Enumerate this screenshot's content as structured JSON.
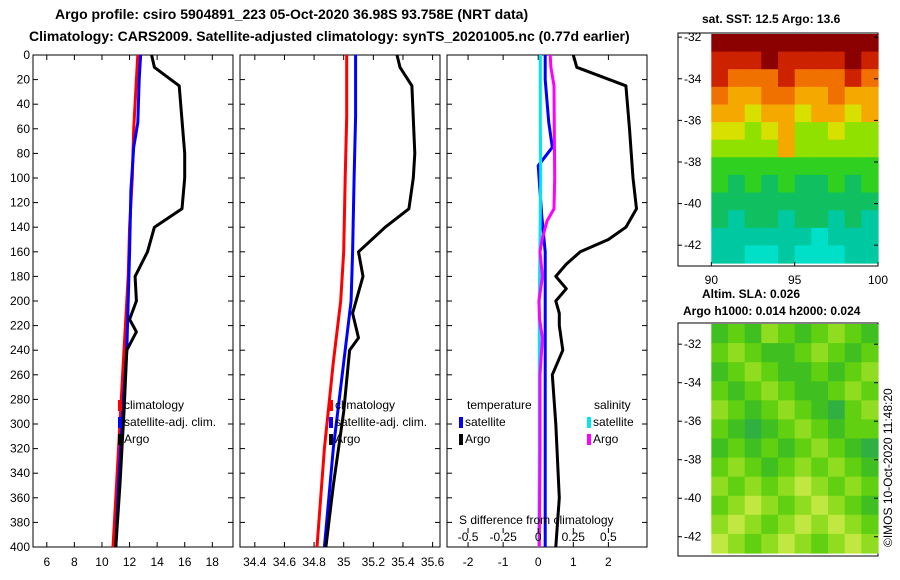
{
  "header": {
    "line1": "Argo profile: csiro 5904891_223 05-Oct-2020 36.98S 93.758E (NRT data)",
    "line2": "Climatology: CARS2009. Satellite-adjusted climatology: synTS_20201005.nc (0.77d earlier)"
  },
  "credit": "©IMOS 10-Oct-2020 11:48:20",
  "colors": {
    "climatology": "#ff0000",
    "satellite": "#0000ff",
    "argo": "#000000",
    "salinity_sat": "#00e5ee",
    "salinity_argo": "#ff00ff"
  },
  "chart_data": [
    {
      "id": "temperature",
      "type": "line",
      "xlim": [
        5,
        19.5
      ],
      "ylim": [
        0,
        400
      ],
      "x_ticks": [
        "6",
        "8",
        "10",
        "12",
        "14",
        "16",
        "18"
      ],
      "x_tick_values": [
        6,
        8,
        10,
        12,
        14,
        16,
        18
      ],
      "y_ticks": [
        "0",
        "20",
        "40",
        "60",
        "80",
        "100",
        "120",
        "140",
        "160",
        "180",
        "200",
        "220",
        "240",
        "260",
        "280",
        "300",
        "320",
        "340",
        "360",
        "380",
        "400"
      ],
      "y_tick_values": [
        0,
        20,
        40,
        60,
        80,
        100,
        120,
        140,
        160,
        180,
        200,
        220,
        240,
        260,
        280,
        300,
        320,
        340,
        360,
        380,
        400
      ],
      "legend": [
        "climatology",
        "satellite-adj. clim.",
        "Argo"
      ],
      "series": [
        {
          "name": "climatology",
          "color_key": "climatology",
          "x": [
            12.6,
            12.5,
            12.3,
            12.2,
            12.0,
            11.9,
            11.6,
            11.3,
            11.0,
            10.8
          ],
          "depth": [
            0,
            20,
            60,
            100,
            140,
            180,
            240,
            300,
            360,
            400
          ]
        },
        {
          "name": "satellite-adj. clim.",
          "color_key": "satellite",
          "x": [
            12.8,
            12.7,
            12.6,
            12.3,
            12.1,
            12.0,
            11.9,
            11.8,
            11.5,
            11.2,
            11.0
          ],
          "depth": [
            0,
            20,
            55,
            75,
            110,
            160,
            200,
            240,
            290,
            350,
            400
          ]
        },
        {
          "name": "Argo",
          "color_key": "argo",
          "x": [
            13.6,
            13.8,
            15.6,
            16.0,
            16.0,
            15.8,
            13.8,
            13.3,
            12.4,
            12.5,
            12.0,
            12.5,
            11.8,
            11.6,
            11.3,
            11.0
          ],
          "depth": [
            0,
            10,
            25,
            80,
            100,
            125,
            140,
            160,
            180,
            200,
            215,
            225,
            240,
            290,
            350,
            400
          ]
        }
      ]
    },
    {
      "id": "salinity",
      "type": "line",
      "xlim": [
        34.3,
        35.65
      ],
      "ylim": [
        0,
        400
      ],
      "x_ticks": [
        "34.4",
        "34.6",
        "34.8",
        "35",
        "35.2",
        "35.4",
        "35.6"
      ],
      "x_tick_values": [
        34.4,
        34.6,
        34.8,
        35.0,
        35.2,
        35.4,
        35.6
      ],
      "legend": [
        "climatology",
        "satellite-adj. clim.",
        "Argo"
      ],
      "series": [
        {
          "name": "climatology",
          "color_key": "climatology",
          "x": [
            35.02,
            35.02,
            35.01,
            35.0,
            34.98,
            34.93,
            34.87,
            34.82
          ],
          "depth": [
            0,
            50,
            100,
            160,
            200,
            250,
            320,
            400
          ]
        },
        {
          "name": "satellite-adj. clim.",
          "color_key": "satellite",
          "x": [
            35.08,
            35.08,
            35.07,
            35.06,
            35.05,
            35.0,
            34.93,
            34.87
          ],
          "depth": [
            0,
            50,
            100,
            160,
            200,
            250,
            320,
            400
          ]
        },
        {
          "name": "Argo",
          "color_key": "argo",
          "x": [
            35.36,
            35.38,
            35.46,
            35.48,
            35.47,
            35.44,
            35.28,
            35.1,
            35.13,
            35.06,
            35.1,
            35.04,
            35.0,
            34.93,
            34.88
          ],
          "depth": [
            0,
            10,
            25,
            80,
            100,
            125,
            140,
            160,
            180,
            210,
            230,
            240,
            290,
            350,
            400
          ]
        }
      ]
    },
    {
      "id": "difference",
      "type": "line",
      "xlim": [
        -2.6,
        3.1
      ],
      "ylim": [
        0,
        400
      ],
      "x_ticks": [
        "-2",
        "-1",
        "0",
        "1",
        "2"
      ],
      "x_tick_values": [
        -2,
        -1,
        0,
        1,
        2
      ],
      "bottom_ticks": [
        "-0.5",
        "-0.25",
        "0",
        "0.25",
        "0.5"
      ],
      "bottom_title": "S difference from climatology",
      "legend_temperature": {
        "title": "temperature",
        "items": [
          "satellite",
          "Argo"
        ]
      },
      "legend_salinity": {
        "title": "salinity",
        "items": [
          "satellite",
          "Argo"
        ]
      },
      "series": [
        {
          "name": "temperature satellite",
          "color_key": "satellite",
          "x": [
            0.2,
            0.2,
            0.3,
            0.4,
            0.0,
            0.1,
            0.2,
            0.2,
            0.2,
            0.2
          ],
          "depth": [
            0,
            20,
            55,
            75,
            90,
            130,
            160,
            220,
            300,
            400
          ]
        },
        {
          "name": "temperature Argo",
          "color_key": "argo",
          "x": [
            1.0,
            1.1,
            2.5,
            2.6,
            2.7,
            2.8,
            2.5,
            2.0,
            1.2,
            0.8,
            0.5,
            0.8,
            0.5,
            0.6,
            0.6,
            0.7,
            0.4,
            0.5,
            0.6,
            0.5
          ],
          "depth": [
            0,
            10,
            25,
            60,
            100,
            125,
            140,
            150,
            160,
            170,
            180,
            190,
            200,
            210,
            220,
            240,
            260,
            300,
            360,
            400
          ]
        },
        {
          "name": "salinity satellite",
          "color_key": "salinity_sat",
          "x": [
            0.06,
            0.06,
            0.06,
            0.07,
            0.05,
            0.03,
            0.03,
            0.03,
            0.02
          ],
          "depth": [
            0,
            20,
            50,
            100,
            150,
            200,
            250,
            320,
            400
          ]
        },
        {
          "name": "salinity Argo",
          "color_key": "salinity_argo",
          "x": [
            0.34,
            0.36,
            0.45,
            0.46,
            0.47,
            0.45,
            0.25,
            0.11,
            0.05,
            0.12,
            0.02,
            0.04,
            0.12,
            0.05,
            0.05,
            0.03
          ],
          "depth": [
            0,
            10,
            25,
            70,
            100,
            125,
            135,
            150,
            160,
            180,
            200,
            215,
            230,
            260,
            320,
            400
          ]
        }
      ]
    },
    {
      "id": "sst_map",
      "type": "heatmap",
      "title": "sat. SST: 12.5 Argo: 13.6",
      "x_ticks": [
        "90",
        "95",
        "100"
      ],
      "x_tick_values": [
        90,
        95,
        100
      ],
      "y_ticks": [
        "-32",
        "-34",
        "-36",
        "-38",
        "-40",
        "-42"
      ],
      "y_tick_values": [
        -32,
        -34,
        -36,
        -38,
        -40,
        -42
      ],
      "xlim": [
        88,
        100
      ],
      "ylim": [
        -43,
        -31.8
      ],
      "data_xlim": [
        90,
        100
      ],
      "palette": [
        "#8b0000",
        "#cc2200",
        "#f07000",
        "#f5a800",
        "#d8e000",
        "#90e000",
        "#30d020",
        "#10c060",
        "#00c8a0",
        "#00e0c8"
      ],
      "rows": [
        [
          0,
          0,
          0,
          0,
          0,
          0,
          0,
          0,
          0,
          0
        ],
        [
          1,
          1,
          1,
          0,
          1,
          1,
          1,
          1,
          0,
          1
        ],
        [
          1,
          2,
          2,
          2,
          1,
          2,
          2,
          2,
          1,
          2
        ],
        [
          2,
          3,
          3,
          2,
          2,
          3,
          3,
          2,
          3,
          3
        ],
        [
          3,
          3,
          4,
          3,
          3,
          4,
          3,
          3,
          4,
          3
        ],
        [
          4,
          4,
          5,
          4,
          3,
          5,
          5,
          4,
          5,
          5
        ],
        [
          5,
          5,
          5,
          5,
          3,
          5,
          5,
          5,
          5,
          5
        ],
        [
          6,
          6,
          6,
          6,
          6,
          6,
          6,
          6,
          6,
          6
        ],
        [
          6,
          7,
          6,
          7,
          6,
          7,
          7,
          6,
          7,
          6
        ],
        [
          7,
          7,
          7,
          7,
          7,
          7,
          7,
          7,
          7,
          7
        ],
        [
          7,
          8,
          7,
          7,
          8,
          7,
          7,
          8,
          7,
          8
        ],
        [
          8,
          8,
          8,
          8,
          8,
          8,
          9,
          8,
          8,
          8
        ],
        [
          8,
          8,
          9,
          9,
          8,
          9,
          9,
          9,
          8,
          8
        ]
      ]
    },
    {
      "id": "sla_map",
      "type": "heatmap",
      "title_line1": "Altim. SLA: 0.026",
      "title_line2": "Argo h1000: 0.014 h2000: 0.024",
      "y_ticks": [
        "-32",
        "-34",
        "-36",
        "-38",
        "-40",
        "-42"
      ],
      "y_tick_values": [
        -32,
        -34,
        -36,
        -38,
        -40,
        -42
      ],
      "xlim": [
        88,
        100
      ],
      "ylim": [
        -43,
        -30.9
      ],
      "data_xlim": [
        90,
        100
      ],
      "palette": [
        "#20a060",
        "#30b040",
        "#40c020",
        "#60d010",
        "#90dc20",
        "#c0e840"
      ],
      "rows": [
        [
          2,
          3,
          2,
          4,
          3,
          2,
          3,
          4,
          3,
          2
        ],
        [
          3,
          4,
          3,
          2,
          2,
          3,
          4,
          3,
          2,
          3
        ],
        [
          2,
          3,
          4,
          3,
          2,
          2,
          3,
          2,
          3,
          4
        ],
        [
          3,
          2,
          3,
          4,
          3,
          2,
          2,
          3,
          4,
          3
        ],
        [
          4,
          3,
          2,
          3,
          4,
          3,
          2,
          1,
          3,
          4
        ],
        [
          3,
          2,
          1,
          2,
          3,
          4,
          3,
          2,
          3,
          3
        ],
        [
          2,
          3,
          2,
          3,
          2,
          3,
          4,
          3,
          2,
          1
        ],
        [
          3,
          4,
          3,
          2,
          3,
          4,
          3,
          4,
          3,
          2
        ],
        [
          4,
          3,
          4,
          3,
          4,
          5,
          4,
          3,
          4,
          3
        ],
        [
          3,
          4,
          5,
          4,
          3,
          4,
          5,
          4,
          3,
          2
        ],
        [
          4,
          5,
          4,
          3,
          4,
          5,
          4,
          5,
          4,
          3
        ],
        [
          5,
          4,
          3,
          4,
          5,
          4,
          3,
          4,
          5,
          4
        ]
      ]
    }
  ]
}
